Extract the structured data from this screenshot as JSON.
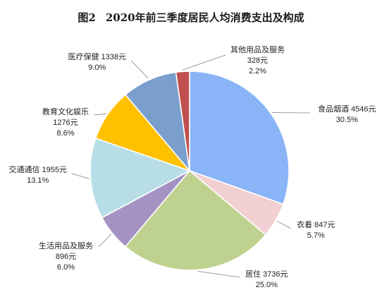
{
  "chart_data": {
    "type": "pie",
    "title_prefix": "图2",
    "title": "2020年前三季度居民人均消费支出及构成",
    "unit": "元",
    "slices": [
      {
        "name": "食品烟酒",
        "value": 4546,
        "percent": "30.5%",
        "color": "#8AB4F8"
      },
      {
        "name": "衣着",
        "value": 847,
        "percent": "5.7%",
        "color": "#F2CFD0"
      },
      {
        "name": "居住",
        "value": 3736,
        "percent": "25.0%",
        "color": "#BFD18F"
      },
      {
        "name": "生活用品及服务",
        "value": 896,
        "percent": "6.0%",
        "color": "#A493C2"
      },
      {
        "name": "交通通信",
        "value": 1955,
        "percent": "13.1%",
        "color": "#B7DEE6"
      },
      {
        "name": "教育文化娱乐",
        "value": 1276,
        "percent": "8.6%",
        "color": "#FFC000"
      },
      {
        "name": "医疗保健",
        "value": 1338,
        "percent": "9.0%",
        "color": "#7B9FCC"
      },
      {
        "name": "其他用品及服务",
        "value": 328,
        "percent": "2.2%",
        "color": "#C0504D"
      }
    ]
  }
}
